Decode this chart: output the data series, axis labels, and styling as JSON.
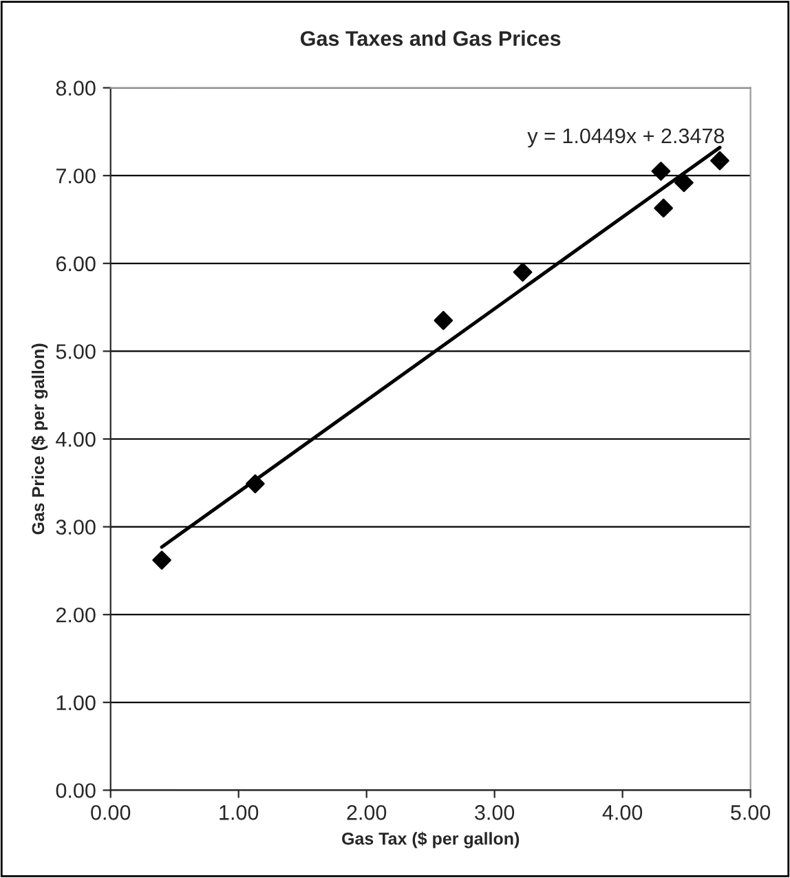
{
  "chart_data": {
    "type": "scatter",
    "title": "Gas Taxes and Gas Prices",
    "xlabel": "Gas Tax ($ per gallon)",
    "ylabel": "Gas Price ($ per gallon)",
    "series": [
      {
        "color": "#000000",
        "marker": "diamond",
        "x": [
          0.4,
          1.13,
          2.6,
          3.22,
          4.3,
          4.32,
          4.48,
          4.76
        ],
        "values": [
          2.62,
          3.49,
          5.35,
          5.9,
          7.05,
          6.63,
          6.92,
          7.17
        ]
      },
      {
        "type": "line",
        "color": "#000000",
        "marker": "none",
        "x": [
          0.4,
          4.76
        ],
        "values": [
          2.77,
          7.32
        ]
      }
    ],
    "annotations": [
      "y = 1.0449x + 2.3478"
    ],
    "xlim": [
      0,
      5
    ],
    "xticks": [
      {
        "value": 0,
        "label": "0.00"
      },
      {
        "value": 1,
        "label": "1.00"
      },
      {
        "value": 2,
        "label": "2.00"
      },
      {
        "value": 3,
        "label": "3.00"
      },
      {
        "value": 4,
        "label": "4.00"
      },
      {
        "value": 5,
        "label": "5.00"
      }
    ],
    "ylim": [
      0,
      8
    ],
    "yticks": [
      {
        "value": 0,
        "label": "0.00"
      },
      {
        "value": 1,
        "label": "1.00"
      },
      {
        "value": 2,
        "label": "2.00"
      },
      {
        "value": 3,
        "label": "3.00"
      },
      {
        "value": 4,
        "label": "4.00"
      },
      {
        "value": 5,
        "label": "5.00"
      },
      {
        "value": 6,
        "label": "6.00"
      },
      {
        "value": 7,
        "label": "7.00"
      },
      {
        "value": 8,
        "label": "8.00"
      }
    ],
    "grid": "y",
    "legend": false
  }
}
